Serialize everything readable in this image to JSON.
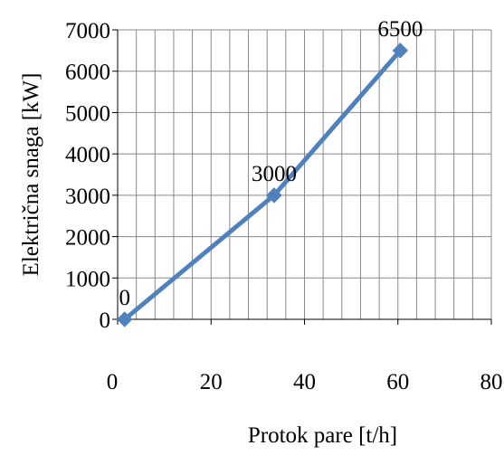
{
  "chart_data": {
    "type": "line",
    "title": "",
    "xlabel": "Protok pare [t/h]",
    "ylabel": "Električna snaga [kW]",
    "xlim": [
      0,
      80
    ],
    "ylim": [
      0,
      7000
    ],
    "x_ticks": [
      0,
      20,
      40,
      60,
      80
    ],
    "y_ticks": [
      0,
      1000,
      2000,
      3000,
      4000,
      5000,
      6000,
      7000
    ],
    "grid": true,
    "legend": "none",
    "series": [
      {
        "x": [
          1.5,
          33.5,
          60.5
        ],
        "values": [
          0,
          3000,
          6500
        ],
        "data_labels": [
          "0",
          "3000",
          "6500"
        ],
        "color": "#4f81bd",
        "marker": "diamond"
      }
    ],
    "grid_color": "#898989",
    "axis_color": "#000000"
  }
}
